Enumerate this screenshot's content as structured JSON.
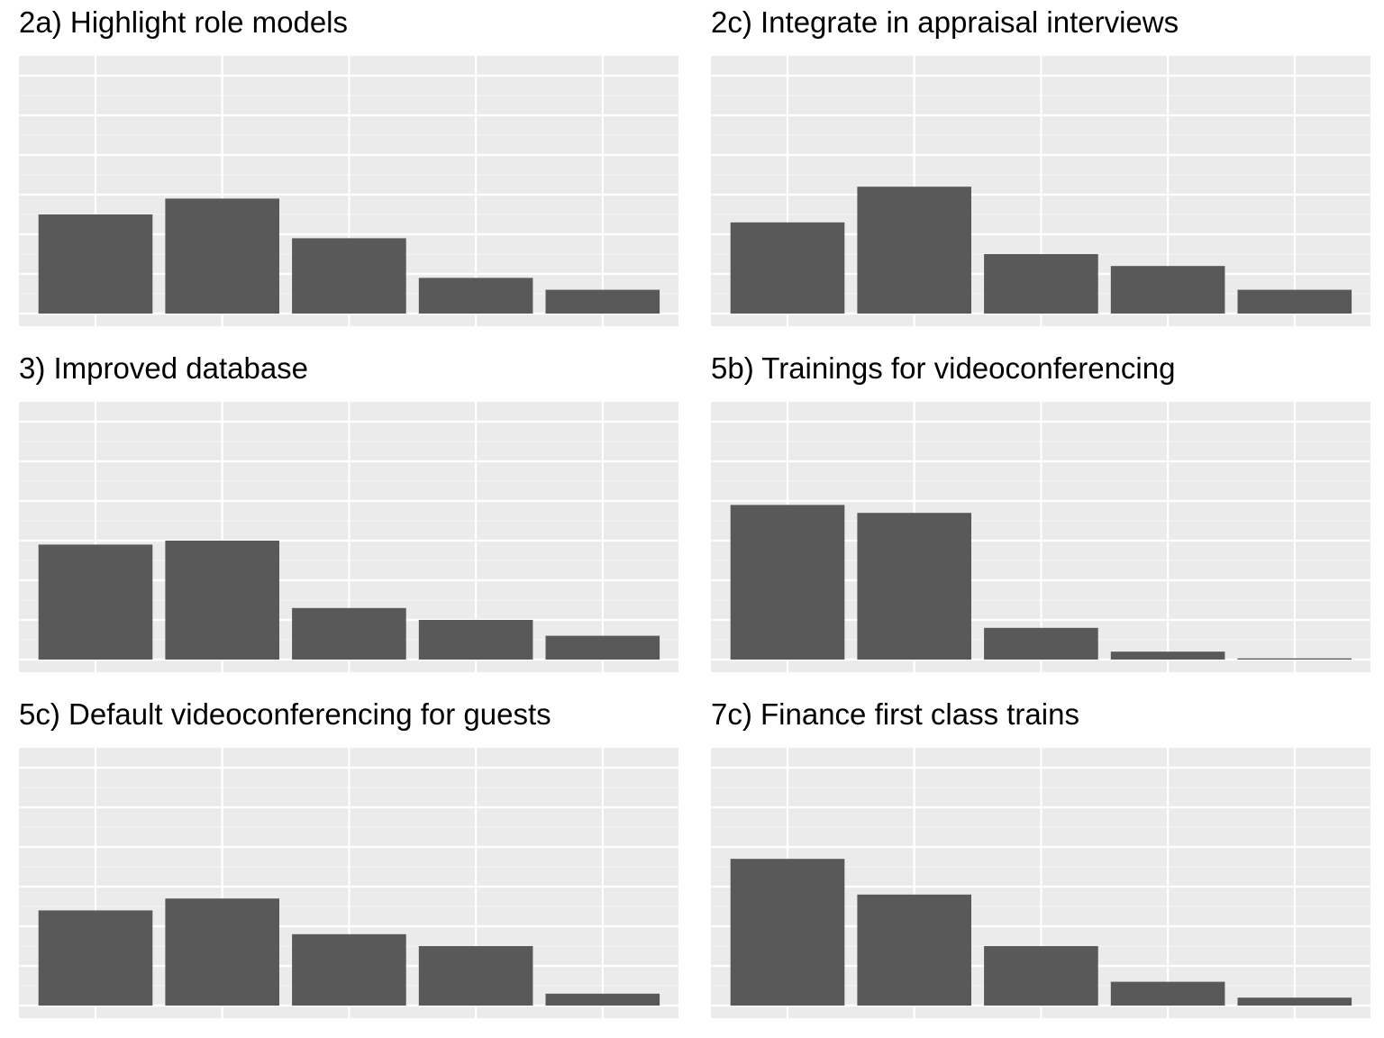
{
  "colors": {
    "panel_background": "#EBEBEB",
    "gridline_major": "#FFFFFF",
    "gridline_minor": "#F5F5F5",
    "bar_fill": "#595959",
    "title_text": "#000000"
  },
  "chart_data": [
    {
      "type": "bar",
      "title": "2a) Highlight role models",
      "xlabel": "",
      "ylabel": "",
      "values": [
        25,
        29,
        19,
        9,
        6
      ],
      "ylim": [
        0,
        60
      ],
      "grid": true
    },
    {
      "type": "bar",
      "title": "2c) Integrate in appraisal interviews",
      "xlabel": "",
      "ylabel": "",
      "values": [
        23,
        32,
        15,
        12,
        6
      ],
      "ylim": [
        0,
        60
      ],
      "grid": true
    },
    {
      "type": "bar",
      "title": "3) Improved database",
      "xlabel": "",
      "ylabel": "",
      "values": [
        29,
        30,
        13,
        10,
        6
      ],
      "ylim": [
        0,
        60
      ],
      "grid": true
    },
    {
      "type": "bar",
      "title": "5b) Trainings for videoconferencing",
      "xlabel": "",
      "ylabel": "",
      "values": [
        39,
        37,
        8,
        2,
        0.3
      ],
      "ylim": [
        0,
        60
      ],
      "grid": true
    },
    {
      "type": "bar",
      "title": "5c) Default videoconferencing for guests",
      "xlabel": "",
      "ylabel": "",
      "values": [
        24,
        27,
        18,
        15,
        3
      ],
      "ylim": [
        0,
        60
      ],
      "grid": true
    },
    {
      "type": "bar",
      "title": "7c) Finance first class trains",
      "xlabel": "",
      "ylabel": "",
      "values": [
        37,
        28,
        15,
        6,
        2
      ],
      "ylim": [
        0,
        60
      ],
      "grid": true
    }
  ]
}
